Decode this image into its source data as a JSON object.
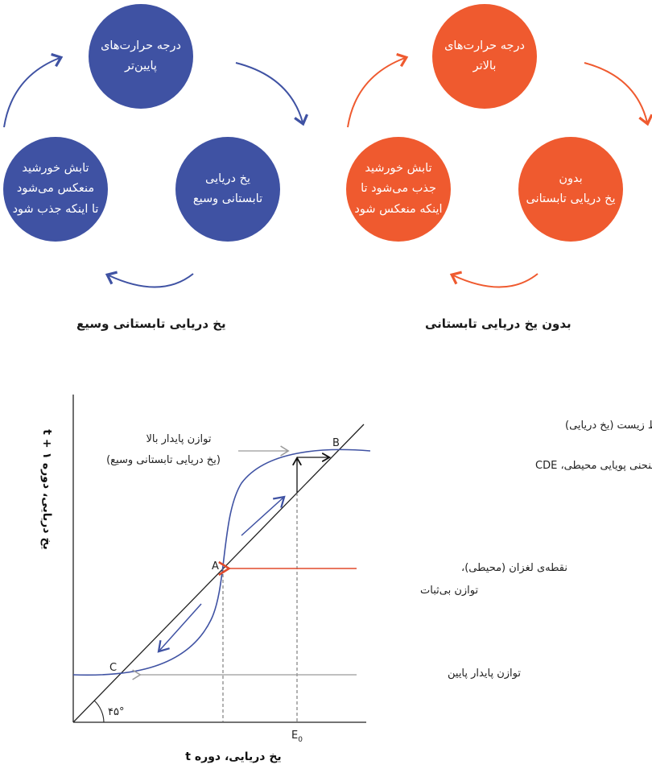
{
  "cycles": {
    "left": {
      "caption": "یخ دریایی تابستانی وسیع",
      "top": "درجه حرارت‌های\nپایین‌تر",
      "right": "یخ دریایی\nتابستانی وسیع",
      "left": "تابش خورشید\nمنعکس می‌شود\nتا اینکه جذب شود",
      "color": "#3f52a3"
    },
    "right": {
      "caption": "بدون یخ دریایی تابستانی",
      "top": "درجه حرارت‌های\nبالاتر",
      "right": "بدون\nیخ دریایی تابستانی",
      "left": "تابش خورشید\nجذب می‌شود تا\nاینکه منعکس شود",
      "color": "#ef5a2f"
    }
  },
  "graph": {
    "y_axis_label": "یخ دریایی، دوره ۱ + t",
    "x_axis_label": "یخ دریایی، دوره t",
    "x_tick": "E",
    "x_tick_sub": "0",
    "angle_label": "۴۵°",
    "point_a": "A",
    "point_b": "B",
    "point_c": "C",
    "label_line": "خط تغییر نکرده محیط زیست (یخ دریایی)",
    "label_curve": "منحنی پویایی محیطی، CDE",
    "label_high_1": "توازن پایدار بالا",
    "label_high_2": "(یخ دریایی تابستانی وسیع)",
    "label_inflection_1": "نقطه‌ی لغزان (محیطی)،",
    "label_inflection_2": "توازن بی‌ثبات",
    "label_low": "توازن پایدار پایین",
    "colors": {
      "curve": "#3f52a3",
      "arrow_red": "#e04a2c",
      "arrow_gray": "#9a9a9a"
    }
  }
}
